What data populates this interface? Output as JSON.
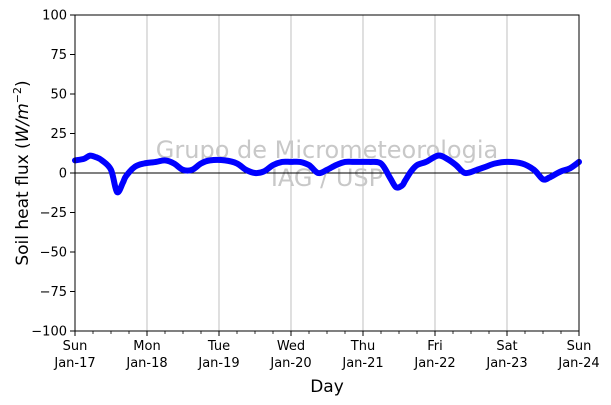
{
  "chart_data": {
    "type": "line",
    "title": "",
    "xlabel": "Day",
    "ylabel_parts": [
      "Soil heat flux (",
      "W/m",
      "−2",
      ")"
    ],
    "ylim": [
      -100,
      100
    ],
    "yticks": [
      -100,
      -75,
      -50,
      -25,
      0,
      25,
      50,
      75,
      100
    ],
    "ytick_labels": [
      "−100",
      "−75",
      "−50",
      "−25",
      "0",
      "25",
      "50",
      "75",
      "100"
    ],
    "xlim": [
      "2021-01-17T00:00",
      "2021-01-24T00:00"
    ],
    "xticks": [
      {
        "weekday": "Sun",
        "date": "Jan-17"
      },
      {
        "weekday": "Mon",
        "date": "Jan-18"
      },
      {
        "weekday": "Tue",
        "date": "Jan-19"
      },
      {
        "weekday": "Wed",
        "date": "Jan-20"
      },
      {
        "weekday": "Thu",
        "date": "Jan-21"
      },
      {
        "weekday": "Fri",
        "date": "Jan-22"
      },
      {
        "weekday": "Sat",
        "date": "Jan-23"
      },
      {
        "weekday": "Sun",
        "date": "Jan-24"
      }
    ],
    "grid": "vertical",
    "zero_line": true,
    "line_color": "#0000ff",
    "watermark": [
      "Grupo de Micrometeorologia",
      "IAG / USP"
    ],
    "series": [
      {
        "x": [
          "2021-01-17T00:00",
          "2021-01-17T03:00",
          "2021-01-17T05:00",
          "2021-01-17T07:00",
          "2021-01-17T09:00",
          "2021-01-17T12:00",
          "2021-01-17T14:00",
          "2021-01-17T16:00",
          "2021-01-17T17:00",
          "2021-01-17T20:00",
          "2021-01-17T23:00",
          "2021-01-18T03:00",
          "2021-01-18T06:00",
          "2021-01-18T09:00",
          "2021-01-18T12:00",
          "2021-01-18T15:00",
          "2021-01-18T18:00",
          "2021-01-18T21:00",
          "2021-01-19T02:00",
          "2021-01-19T06:00",
          "2021-01-19T09:00",
          "2021-01-19T12:00",
          "2021-01-19T15:00",
          "2021-01-19T18:00",
          "2021-01-19T21:00",
          "2021-01-20T00:00",
          "2021-01-20T03:00",
          "2021-01-20T06:00",
          "2021-01-20T09:00",
          "2021-01-20T12:00",
          "2021-01-20T15:00",
          "2021-01-20T18:00",
          "2021-01-20T21:00",
          "2021-01-21T02:00",
          "2021-01-21T06:00",
          "2021-01-21T09:00",
          "2021-01-21T11:00",
          "2021-01-21T13:00",
          "2021-01-21T14:00",
          "2021-01-21T16:00",
          "2021-01-21T18:00",
          "2021-01-21T21:00",
          "2021-01-22T01:00",
          "2021-01-22T04:00",
          "2021-01-22T07:00",
          "2021-01-22T10:00",
          "2021-01-22T14:00",
          "2021-01-22T17:00",
          "2021-01-22T20:00",
          "2021-01-23T00:00",
          "2021-01-23T05:00",
          "2021-01-23T09:00",
          "2021-01-23T12:00",
          "2021-01-23T14:00",
          "2021-01-23T15:00",
          "2021-01-23T18:00",
          "2021-01-23T21:00",
          "2021-01-24T00:00"
        ],
        "y": [
          8,
          9,
          11,
          10,
          8,
          2,
          -12,
          -6,
          -2,
          4,
          6,
          7,
          8,
          6,
          2,
          2,
          6,
          8,
          8,
          6,
          2,
          0,
          1,
          5,
          7,
          7,
          7,
          5,
          0,
          2,
          5,
          7,
          7,
          7,
          6,
          -3,
          -9,
          -8,
          -5,
          1,
          5,
          7,
          11,
          9,
          5,
          0,
          2,
          4,
          6,
          7,
          6,
          2,
          -4,
          -3,
          -2,
          1,
          3,
          7
        ]
      }
    ]
  }
}
